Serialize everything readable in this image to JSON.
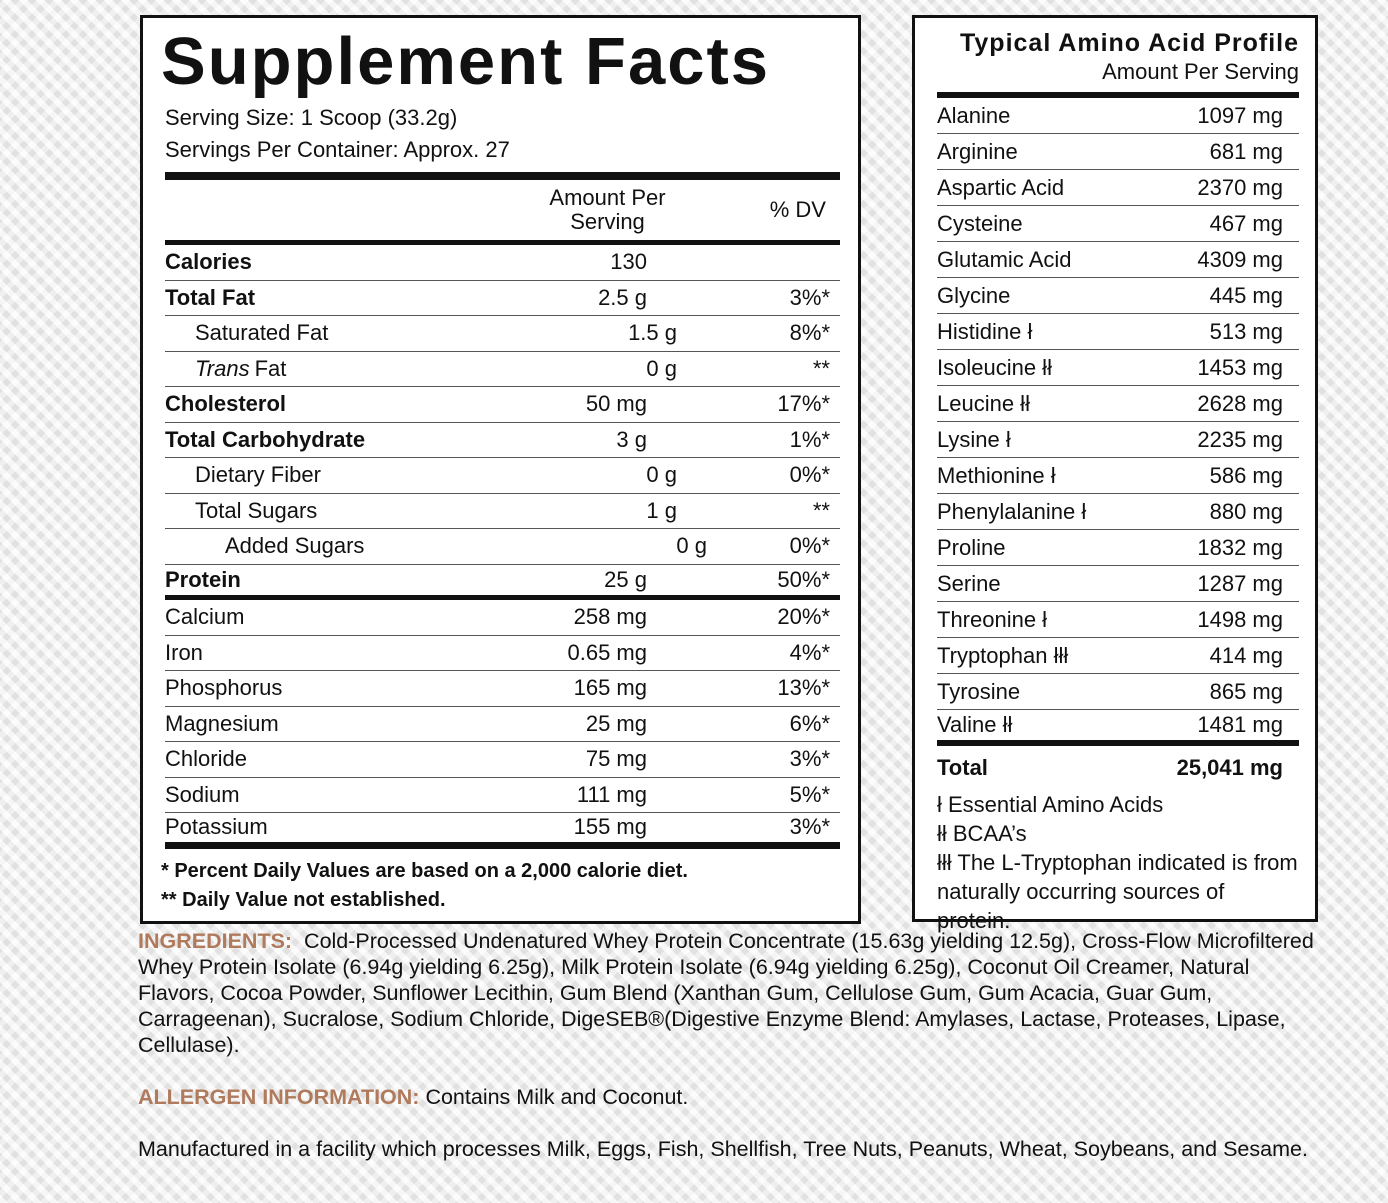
{
  "supplement_facts": {
    "title": "Supplement Facts",
    "serving_size": "Serving Size: 1 Scoop (33.2g)",
    "servings_per_container": "Servings Per Container: Approx. 27",
    "columns": [
      "Amount Per Serving",
      "% DV"
    ],
    "rows": [
      {
        "name": "Calories",
        "amount": "130"
      },
      {
        "name": "Total Fat",
        "amount": "2.5 g",
        "dv": "3%*"
      },
      {
        "name": "Saturated Fat",
        "amount": "1.5 g",
        "dv": "8%*"
      },
      {
        "name": [
          "Trans",
          "Fat"
        ],
        "amount": "0 g",
        "dv": "**"
      },
      {
        "name": "Cholesterol",
        "amount": "50 mg",
        "dv": "17%*"
      },
      {
        "name": "Total Carbohydrate",
        "amount": "3 g",
        "dv": "1%*"
      },
      {
        "name": "Dietary Fiber",
        "amount": "0 g",
        "dv": "0%*"
      },
      {
        "name": "Total Sugars",
        "amount": "1 g",
        "dv": "**"
      },
      {
        "name": "Added Sugars",
        "amount": "0 g",
        "dv": "0%*"
      },
      {
        "name": "Protein",
        "amount": "25 g",
        "dv": "50%*"
      },
      {
        "name": "Calcium",
        "amount": "258 mg",
        "dv": "20%*"
      },
      {
        "name": "Iron",
        "amount": "0.65 mg",
        "dv": "4%*"
      },
      {
        "name": "Phosphorus",
        "amount": "165 mg",
        "dv": "13%*"
      },
      {
        "name": "Magnesium",
        "amount": "25 mg",
        "dv": "6%*"
      },
      {
        "name": "Chloride",
        "amount": "75 mg",
        "dv": "3%*"
      },
      {
        "name": "Sodium",
        "amount": "111 mg",
        "dv": "5%*"
      },
      {
        "name": "Potassium",
        "amount": "155 mg",
        "dv": "3%*"
      }
    ],
    "footnotes": [
      "* Percent Daily Values are based on a 2,000 calorie diet.",
      "** Daily Value not established."
    ]
  },
  "amino_profile": {
    "title": "Typical Amino Acid Profile",
    "subtitle": "Amount Per Serving",
    "rows": [
      {
        "name": "Alanine",
        "amount": "1097 mg"
      },
      {
        "name": "Arginine",
        "amount": "681 mg"
      },
      {
        "name": "Aspartic Acid",
        "amount": "2370 mg"
      },
      {
        "name": "Cysteine",
        "amount": "467 mg"
      },
      {
        "name": "Glutamic Acid",
        "amount": "4309 mg"
      },
      {
        "name": "Glycine",
        "amount": "445 mg"
      },
      {
        "name": "Histidine ł",
        "amount": "513 mg"
      },
      {
        "name": "Isoleucine łł",
        "amount": "1453 mg"
      },
      {
        "name": "Leucine łł",
        "amount": "2628 mg"
      },
      {
        "name": "Lysine ł",
        "amount": "2235 mg"
      },
      {
        "name": "Methionine ł",
        "amount": "586 mg"
      },
      {
        "name": "Phenylalanine ł",
        "amount": "880 mg"
      },
      {
        "name": "Proline",
        "amount": "1832 mg"
      },
      {
        "name": "Serine",
        "amount": "1287 mg"
      },
      {
        "name": "Threonine ł",
        "amount": "1498 mg"
      },
      {
        "name": "Tryptophan łłł",
        "amount": "414 mg"
      },
      {
        "name": "Tyrosine",
        "amount": "865 mg"
      },
      {
        "name": "Valine łł",
        "amount": "1481 mg"
      }
    ],
    "total": {
      "label": "Total",
      "amount": "25,041 mg"
    },
    "footnotes": [
      "ł Essential Amino Acids",
      "łł BCAA’s",
      "łłł The L-Tryptophan indicated is from naturally occurring sources of protein."
    ]
  },
  "ingredients": {
    "label": "INGREDIENTS:",
    "text": "Cold-Processed Undenatured Whey Protein Concentrate (15.63g yielding 12.5g), Cross-Flow Microfiltered Whey Protein Isolate (6.94g yielding 6.25g), Milk Protein Isolate (6.94g yielding 6.25g), Coconut Oil Creamer, Natural Flavors, Cocoa Powder, Sunflower Lecithin, Gum Blend (Xanthan Gum, Cellulose Gum, Gum Acacia, Guar Gum, Carrageenan), Sucralose, Sodium Chloride, DigeSEB®(Digestive Enzyme Blend: Amylases, Lactase, Proteases, Lipase, Cellulase)."
  },
  "allergen": {
    "label": "ALLERGEN INFORMATION:",
    "text": "Contains Milk and Coconut."
  },
  "facility": "Manufactured in a facility which processes Milk, Eggs, Fish, Shellfish, Tree Nuts, Peanuts, Wheat, Soybeans, and Sesame."
}
